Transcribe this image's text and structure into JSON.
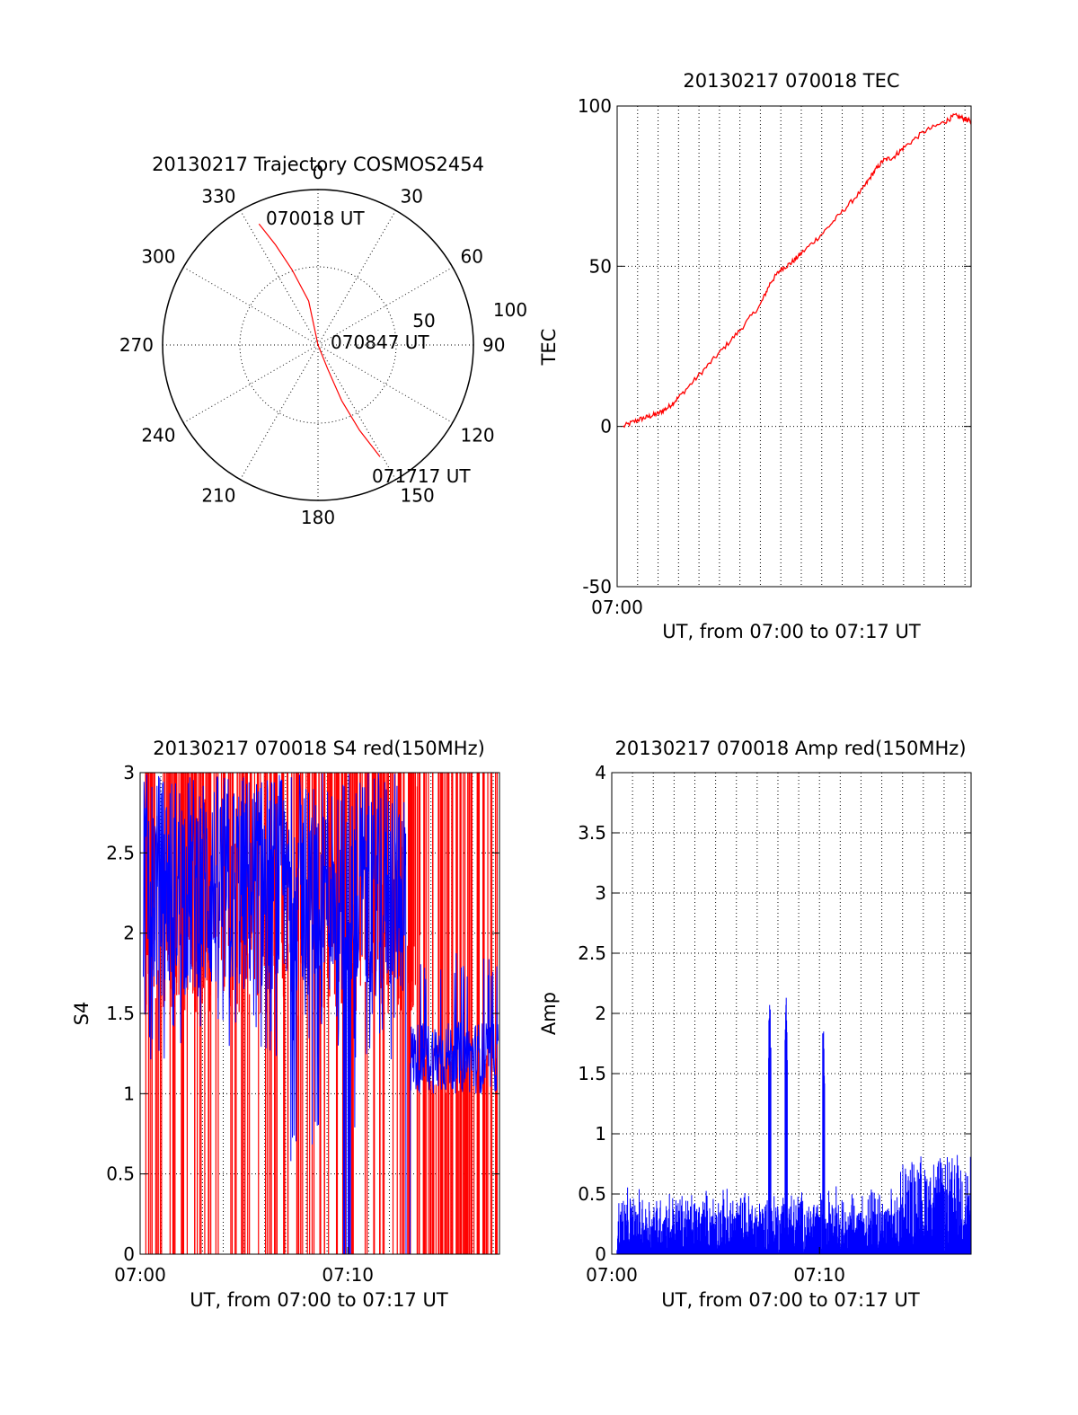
{
  "colors": {
    "red": "#ff0000",
    "blue": "#0000ff",
    "axis": "#000000",
    "background": "#ffffff"
  },
  "chart_data": [
    {
      "type": "polar",
      "title": "20130217 Trajectory COSMOS2454",
      "angle_labels": [
        "0",
        "30",
        "60",
        "90",
        "120",
        "150",
        "180",
        "210",
        "240",
        "270",
        "300",
        "330"
      ],
      "radial_labels": [
        "50",
        "100"
      ],
      "radial_ring_values": [
        50,
        100
      ],
      "grid": "dotted",
      "trajectory": {
        "color": "#ff0000",
        "points": [
          {
            "azimuth": 334,
            "elev": 12
          },
          {
            "azimuth": 337,
            "elev": 27
          },
          {
            "azimuth": 341,
            "elev": 44
          },
          {
            "azimuth": 348,
            "elev": 64
          },
          {
            "azimuth": 0,
            "elev": 90
          },
          {
            "azimuth": 158,
            "elev": 75
          },
          {
            "azimuth": 157,
            "elev": 55
          },
          {
            "azimuth": 154,
            "elev": 35
          },
          {
            "azimuth": 151,
            "elev": 16
          }
        ]
      },
      "annotations": [
        {
          "text": "070018 UT",
          "at": "start"
        },
        {
          "text": "070847 UT",
          "at": "center"
        },
        {
          "text": "071717 UT",
          "at": "end"
        }
      ]
    },
    {
      "type": "line",
      "title": "20130217 070018 TEC",
      "xlabel": "UT, from 07:00 to 07:17 UT",
      "ylabel": "TEC",
      "xlim": [
        0,
        17.3
      ],
      "ylim": [
        -50,
        100
      ],
      "yticks": [
        -50,
        0,
        50,
        100
      ],
      "ytick_labels": [
        "-50",
        "0",
        "50",
        "100"
      ],
      "xticks": [
        0
      ],
      "xtick_labels": [
        "07:00"
      ],
      "grid": true,
      "series": [
        {
          "color": "#ff0000",
          "x": [
            0.3,
            1.0,
            1.5,
            2.0,
            2.5,
            3.0,
            4.0,
            5.0,
            6.0,
            7.0,
            7.5,
            8.0,
            8.5,
            9.0,
            10.0,
            11.0,
            12.0,
            12.5,
            13.0,
            13.5,
            14.0,
            15.0,
            16.0,
            16.5,
            17.0,
            17.3
          ],
          "y": [
            0,
            2,
            3,
            4,
            6,
            9,
            16,
            23,
            30,
            38,
            45,
            49,
            51,
            54,
            60,
            67,
            74,
            79,
            83,
            84,
            87,
            92,
            95,
            97,
            96,
            95
          ]
        }
      ]
    },
    {
      "type": "bar",
      "title": "20130217 070018 S4 red(150MHz)",
      "xlabel": "UT, from 07:00 to 07:17 UT",
      "ylabel": "S4",
      "xlim": [
        0,
        17.3
      ],
      "ylim": [
        0,
        3
      ],
      "yticks": [
        0,
        0.5,
        1,
        1.5,
        2,
        2.5,
        3
      ],
      "ytick_labels": [
        "0",
        "0.5",
        "1",
        "1.5",
        "2",
        "2.5",
        "3"
      ],
      "xticks": [
        0,
        10
      ],
      "xtick_labels": [
        "07:00",
        "07:10"
      ],
      "grid": true,
      "series": [
        {
          "name": "red",
          "color": "#ff0000",
          "style": "dense vertical spikes, many reaching 3"
        },
        {
          "name": "blue",
          "color": "#0000ff",
          "style": "dense trace mostly between 1.5 and 3, band near 1.2 after 07:14"
        }
      ]
    },
    {
      "type": "bar",
      "title": "20130217 070018 Amp red(150MHz)",
      "xlabel": "UT, from 07:00 to 07:17 UT",
      "ylabel": "Amp",
      "xlim": [
        0,
        17.3
      ],
      "ylim": [
        0,
        4
      ],
      "yticks": [
        0,
        0.5,
        1,
        1.5,
        2,
        2.5,
        3,
        3.5,
        4
      ],
      "ytick_labels": [
        "0",
        "0.5",
        "1",
        "1.5",
        "2",
        "2.5",
        "3",
        "3.5",
        "4"
      ],
      "xticks": [
        0,
        10
      ],
      "xtick_labels": [
        "07:00",
        "07:10"
      ],
      "grid": true,
      "series": [
        {
          "name": "blue",
          "color": "#0000ff",
          "style": "dense amplitude spikes, base near 0.3, block near 0.6 after 07:14",
          "peaks": [
            {
              "x": 7.6,
              "y": 2.07
            },
            {
              "x": 8.4,
              "y": 2.13
            },
            {
              "x": 10.2,
              "y": 1.85
            }
          ]
        }
      ]
    }
  ]
}
